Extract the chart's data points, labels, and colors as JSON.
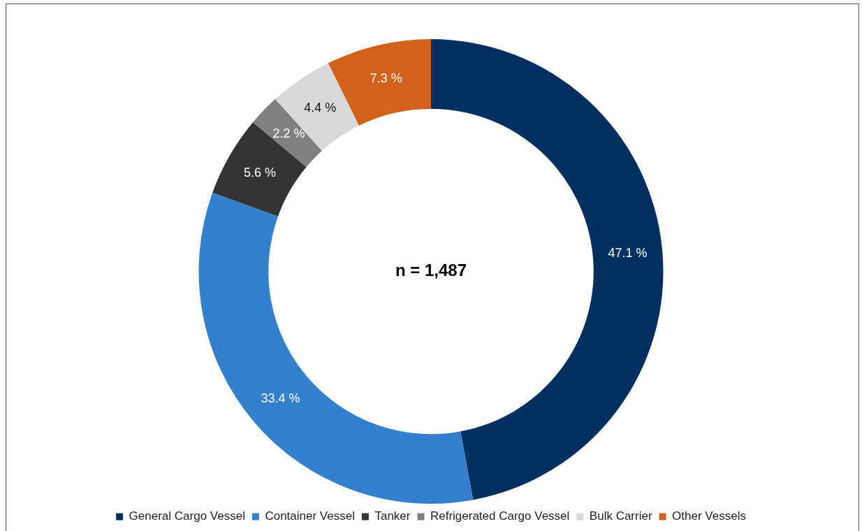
{
  "chart_data": {
    "type": "donut",
    "categories": [
      "General Cargo Vessel",
      "Container Vessel",
      "Tanker",
      "Refrigerated Cargo Vessel",
      "Bulk Carrier",
      "Other Vessels"
    ],
    "values": [
      47.1,
      33.4,
      5.6,
      2.2,
      4.4,
      7.3
    ],
    "colors": [
      "#00305f",
      "#3480cc",
      "#333333",
      "#808080",
      "#d9d9d9",
      "#d2611c"
    ],
    "value_labels": [
      "47.1 %",
      "33.4 %",
      "5.6 %",
      "2.2 %",
      "4.4 %",
      "7.3 %"
    ],
    "annotations": [
      "n = 1,487"
    ],
    "legend": "bottom"
  }
}
